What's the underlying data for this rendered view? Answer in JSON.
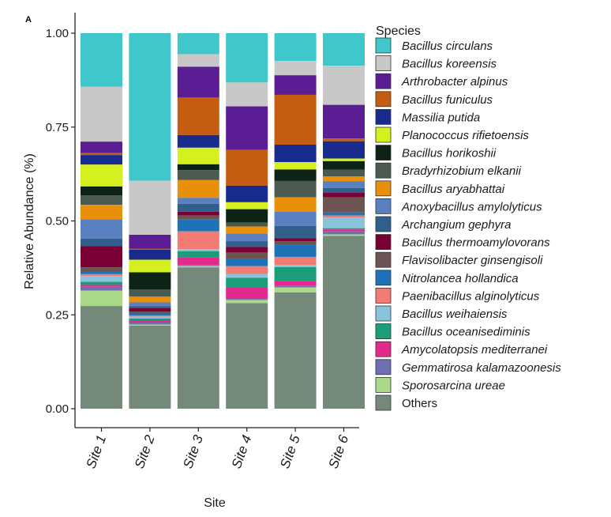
{
  "chart_data": {
    "type": "bar",
    "stacked": true,
    "panel_label": "A",
    "xlabel": "Site",
    "ylabel": "Relative Abundance (%)",
    "ylim": [
      0,
      1
    ],
    "y_ticks": [
      "0.00",
      "0.25",
      "0.50",
      "0.75",
      "1.00"
    ],
    "y_tick_values": [
      0,
      0.25,
      0.5,
      0.75,
      1.0
    ],
    "categories": [
      "Site 1",
      "Site 2",
      "Site 3",
      "Site 4",
      "Site 5",
      "Site 6"
    ],
    "legend_title": "Species",
    "legend_position": "right",
    "series": [
      {
        "name": "Bacillus circulans",
        "color": "#3fc7c9",
        "values": [
          0.14,
          0.373,
          0.053,
          0.128,
          0.068,
          0.085
        ]
      },
      {
        "name": "Bacillus koreensis",
        "color": "#c8c8c8",
        "values": [
          0.143,
          0.137,
          0.032,
          0.062,
          0.035,
          0.102
        ]
      },
      {
        "name": "Arthrobacter alpinus",
        "color": "#5b1d93",
        "values": [
          0.03,
          0.035,
          0.078,
          0.113,
          0.048,
          0.088
        ]
      },
      {
        "name": "Bacillus funiculus",
        "color": "#c45c12",
        "values": [
          0.005,
          0.003,
          0.095,
          0.093,
          0.122,
          0.007
        ]
      },
      {
        "name": "Massilia putida",
        "color": "#182c8e",
        "values": [
          0.025,
          0.025,
          0.032,
          0.043,
          0.043,
          0.045
        ]
      },
      {
        "name": "Planococcus rifietoensis",
        "color": "#d4f01e",
        "values": [
          0.057,
          0.032,
          0.042,
          0.018,
          0.018,
          0.007
        ]
      },
      {
        "name": "Bacillus horikoshii",
        "color": "#0d2315",
        "values": [
          0.023,
          0.043,
          0.015,
          0.035,
          0.028,
          0.022
        ]
      },
      {
        "name": "Bradyrhizobium elkanii",
        "color": "#4b5a50",
        "values": [
          0.025,
          0.018,
          0.025,
          0.01,
          0.04,
          0.018
        ]
      },
      {
        "name": "Bacillus aryabhattai",
        "color": "#e8900a",
        "values": [
          0.038,
          0.015,
          0.045,
          0.018,
          0.035,
          0.012
        ]
      },
      {
        "name": "Anoxybacillus amylolyticus",
        "color": "#5b80c0",
        "values": [
          0.05,
          0.01,
          0.015,
          0.02,
          0.035,
          0.018
        ]
      },
      {
        "name": "Archangium gephyra",
        "color": "#2f5f8a",
        "values": [
          0.02,
          0.005,
          0.02,
          0.015,
          0.03,
          0.012
        ]
      },
      {
        "name": "Bacillus thermoamylovorans",
        "color": "#7a0034",
        "values": [
          0.055,
          0.008,
          0.01,
          0.015,
          0.008,
          0.012
        ]
      },
      {
        "name": "Flavisolibacter ginsengisoli",
        "color": "#6b5452",
        "values": [
          0.01,
          0.005,
          0.01,
          0.015,
          0.008,
          0.04
        ]
      },
      {
        "name": "Nitrolancea hollandica",
        "color": "#1e73b8",
        "values": [
          0.008,
          0.005,
          0.03,
          0.02,
          0.03,
          0.008
        ]
      },
      {
        "name": "Paenibacillus alginolyticus",
        "color": "#f27c74",
        "values": [
          0.005,
          0.003,
          0.045,
          0.02,
          0.02,
          0.005
        ]
      },
      {
        "name": "Bacillus weihaiensis",
        "color": "#89c4dd",
        "values": [
          0.015,
          0.005,
          0.005,
          0.01,
          0.005,
          0.028
        ]
      },
      {
        "name": "Bacillus oceanisediminis",
        "color": "#1a9d78",
        "values": [
          0.008,
          0.005,
          0.015,
          0.025,
          0.035,
          0.003
        ]
      },
      {
        "name": "Amycolatopsis mediterranei",
        "color": "#e12a8c",
        "values": [
          0.005,
          0.005,
          0.02,
          0.03,
          0.01,
          0.005
        ]
      },
      {
        "name": "Gemmatirosa kalamazoonesis",
        "color": "#6e6fb3",
        "values": [
          0.01,
          0.005,
          0.003,
          0.003,
          0.005,
          0.008
        ]
      },
      {
        "name": "Sporosarcina ureae",
        "color": "#abd98a",
        "values": [
          0.04,
          0.003,
          0.003,
          0.008,
          0.012,
          0.004
        ]
      },
      {
        "name": "Others",
        "color": "#74897a",
        "values": [
          0.268,
          0.21,
          0.358,
          0.274,
          0.285,
          0.451
        ]
      }
    ]
  }
}
